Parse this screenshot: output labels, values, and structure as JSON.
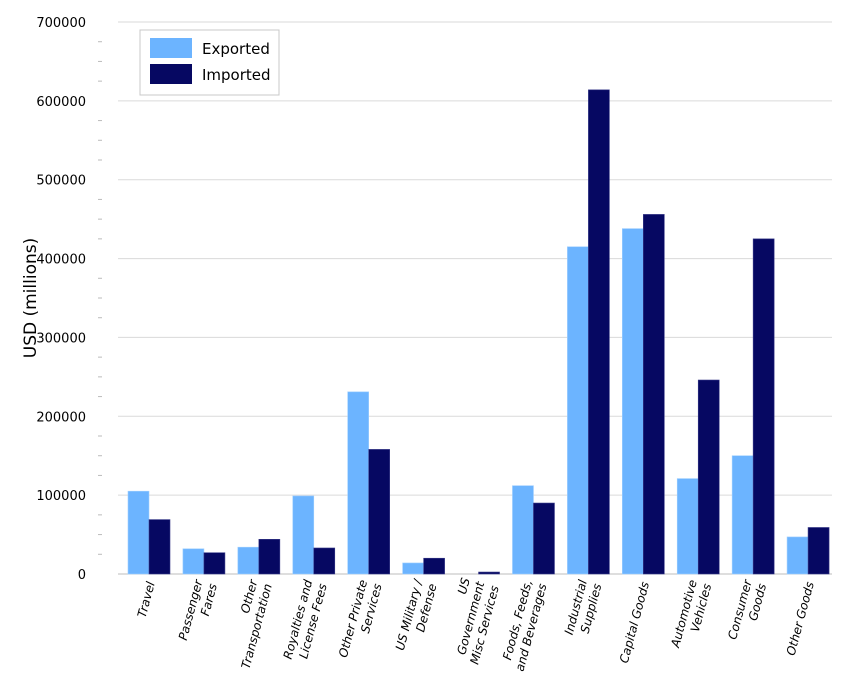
{
  "chart_data": {
    "type": "bar",
    "title": "",
    "xlabel": "",
    "ylabel": "USD (millions)",
    "ylim": [
      0,
      700000
    ],
    "yticks": [
      "0",
      "100000",
      "200000",
      "300000",
      "400000",
      "500000",
      "600000",
      "700000"
    ],
    "grid": true,
    "legend_position": "top-left",
    "categories": [
      [
        "Travel"
      ],
      [
        "Passenger",
        "Fares"
      ],
      [
        "Other",
        "Transportation"
      ],
      [
        "Royalties and",
        "License Fees"
      ],
      [
        "Other Private",
        "Services"
      ],
      [
        "US Military /",
        "Defense"
      ],
      [
        "US",
        "Government",
        "Misc Services"
      ],
      [
        "Foods, Feeds,",
        "and Beverages"
      ],
      [
        "Industrial",
        "Supplies"
      ],
      [
        "Capital Goods"
      ],
      [
        "Automotive",
        "Vehicles"
      ],
      [
        "Consumer",
        "Goods"
      ],
      [
        "Other Goods"
      ]
    ],
    "series": [
      {
        "name": "Exported",
        "color": "#6cb4ff",
        "values": [
          105000,
          32000,
          34000,
          99000,
          231000,
          14000,
          0,
          112000,
          415000,
          438000,
          121000,
          150000,
          47000
        ]
      },
      {
        "name": "Imported",
        "color": "#060862",
        "values": [
          69000,
          27000,
          44000,
          33000,
          158000,
          20000,
          2500,
          90000,
          614000,
          456000,
          246000,
          425000,
          59000
        ]
      }
    ]
  }
}
